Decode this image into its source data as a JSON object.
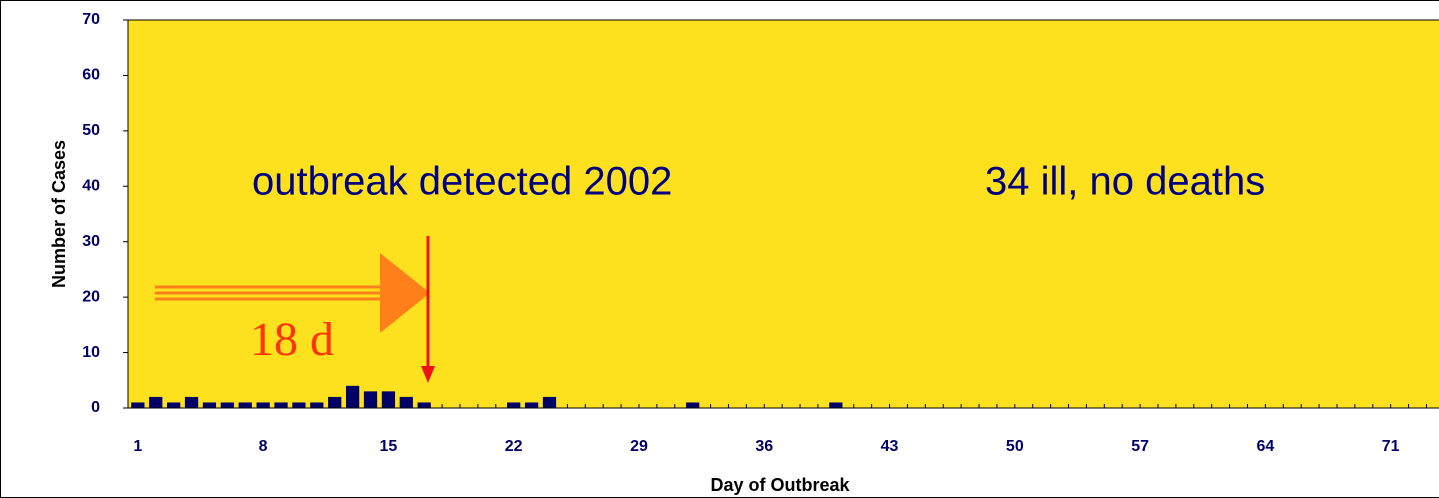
{
  "chart_data": {
    "type": "bar",
    "annotations": [
      "outbreak detected 2002",
      "34 ill, no deaths",
      "18 d"
    ],
    "xlabel": "Day of Outbreak",
    "ylabel": "Number of Cases",
    "x": [
      1,
      2,
      3,
      4,
      5,
      6,
      7,
      8,
      9,
      10,
      11,
      12,
      13,
      14,
      15,
      16,
      17,
      18,
      19,
      20,
      21,
      22,
      23,
      24,
      25,
      26,
      27,
      28,
      29,
      30,
      31,
      32,
      33,
      34,
      35,
      36,
      37,
      38,
      39,
      40,
      41,
      42,
      43,
      44,
      45,
      46,
      47,
      48,
      49,
      50,
      51,
      52,
      53,
      54,
      55,
      56,
      57,
      58,
      59,
      60,
      61,
      62,
      63,
      64,
      65,
      66,
      67,
      68,
      69,
      70,
      71,
      72,
      73
    ],
    "values": [
      1,
      2,
      1,
      2,
      1,
      1,
      1,
      1,
      1,
      1,
      1,
      2,
      4,
      3,
      3,
      2,
      1,
      0,
      0,
      0,
      0,
      1,
      1,
      2,
      0,
      0,
      0,
      0,
      0,
      0,
      0,
      1,
      0,
      0,
      0,
      0,
      0,
      0,
      0,
      1,
      0,
      0,
      0,
      0,
      0,
      0,
      0,
      0,
      0,
      0,
      0,
      0,
      0,
      0,
      0,
      0,
      0,
      0,
      0,
      0,
      0,
      0,
      0,
      0,
      0,
      0,
      0,
      0,
      0,
      0,
      0,
      0,
      0
    ],
    "color": "#000066",
    "background": "#fde01e",
    "xlim": [
      0.45,
      73.7
    ],
    "xticks": [
      1,
      8,
      15,
      22,
      29,
      36,
      43,
      50,
      57,
      64,
      71
    ],
    "ylim": [
      0,
      70
    ],
    "yticks": [
      0,
      10,
      20,
      30,
      40,
      50,
      60,
      70
    ]
  }
}
